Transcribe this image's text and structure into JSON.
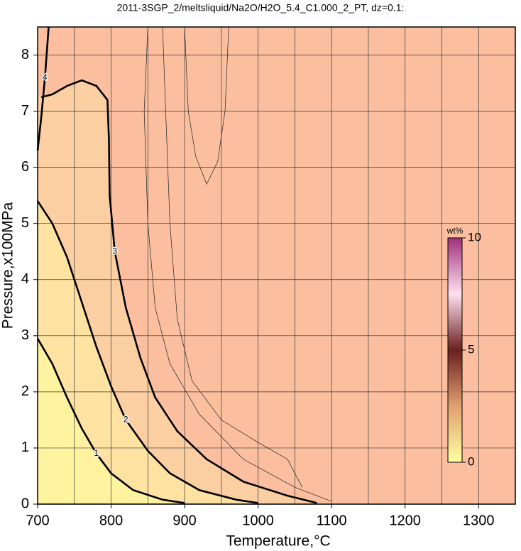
{
  "chart_data": {
    "type": "contour",
    "title": "2011-3SGP_2/meltsliquid/Na2O/H2O_5.4_C1.000_2_PT, dz=0.1:",
    "x_label": "Temperature,°C",
    "y_label": "Pressure,x100MPa",
    "xlim": [
      700,
      1350
    ],
    "ylim": [
      0,
      8.5
    ],
    "xticks": [
      700,
      800,
      900,
      1000,
      1100,
      1200,
      1300
    ],
    "yticks": [
      0,
      1,
      2,
      3,
      4,
      5,
      6,
      7,
      8
    ],
    "xgrid": [
      750,
      850,
      950,
      1050,
      1150,
      1250
    ],
    "grid": true,
    "background": "#fbbfa0",
    "contours": [
      {
        "level": 3,
        "labeled": true,
        "fill": "#fbcfa2",
        "x": [
          705,
          720,
          740,
          760,
          780,
          795,
          797,
          798,
          805,
          820,
          840,
          860,
          890,
          930,
          980,
          1040,
          1080
        ],
        "y": [
          7.25,
          7.3,
          7.45,
          7.55,
          7.45,
          7.2,
          6.5,
          5.5,
          4.5,
          3.5,
          2.6,
          1.9,
          1.3,
          0.8,
          0.4,
          0.15,
          0.02
        ]
      },
      {
        "level": 2,
        "labeled": true,
        "fill": "#fde2a2",
        "x": [
          700,
          720,
          740,
          760,
          780,
          800,
          820,
          850,
          880,
          920,
          970,
          1000
        ],
        "y": [
          5.4,
          5.0,
          4.4,
          3.6,
          2.8,
          2.1,
          1.5,
          0.95,
          0.55,
          0.25,
          0.08,
          0.02
        ]
      },
      {
        "level": 1,
        "labeled": true,
        "fill": "#fff3a0",
        "x": [
          700,
          720,
          740,
          760,
          780,
          800,
          830,
          870,
          900
        ],
        "y": [
          2.95,
          2.5,
          1.9,
          1.35,
          0.9,
          0.55,
          0.25,
          0.08,
          0.02
        ]
      },
      {
        "level": 4,
        "labeled": true,
        "fill": null,
        "x": [
          700,
          705,
          710,
          715
        ],
        "y": [
          6.3,
          6.9,
          7.6,
          8.5
        ]
      },
      {
        "level": 3.5,
        "labeled": false,
        "fill": null,
        "x": [
          1100,
          1050,
          980,
          920,
          880,
          860,
          850,
          845,
          850
        ],
        "y": [
          0.05,
          0.3,
          0.8,
          1.6,
          2.5,
          3.5,
          5,
          7,
          8.5
        ]
      },
      {
        "level": 3.9,
        "labeled": false,
        "fill": null,
        "x": [
          900,
          905,
          915,
          930,
          945,
          955,
          960
        ],
        "y": [
          8.5,
          7,
          6.2,
          5.7,
          6.1,
          7,
          8.5
        ]
      },
      {
        "level": 3.7,
        "labeled": false,
        "fill": null,
        "x": [
          870,
          880,
          890,
          910,
          950,
          1000,
          1040,
          1060
        ],
        "y": [
          8.5,
          5,
          3.3,
          2.2,
          1.5,
          1.1,
          0.8,
          0.3
        ]
      }
    ],
    "colorbar": {
      "label": "wt%",
      "lim": [
        0,
        10
      ],
      "ticks": [
        0,
        5,
        10
      ],
      "colors": [
        "#ffffa0",
        "#e0a070",
        "#6a1f1f",
        "#ffe0f0",
        "#a0307a"
      ]
    }
  }
}
